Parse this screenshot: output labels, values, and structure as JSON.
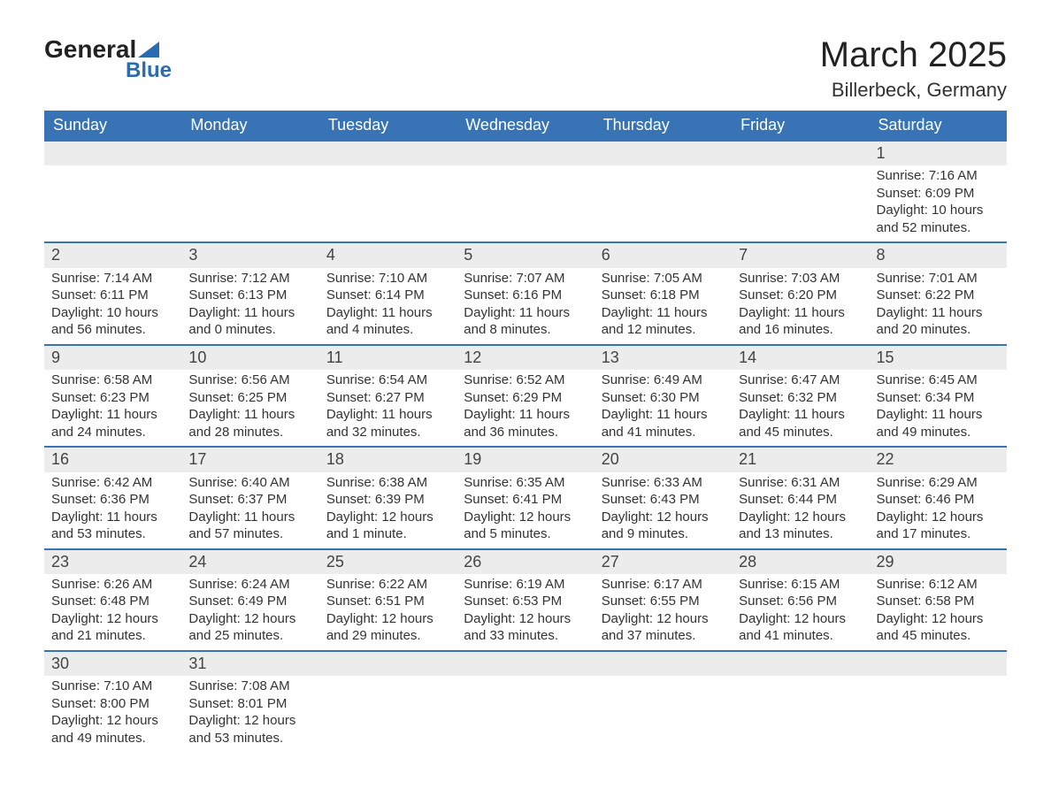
{
  "logo": {
    "text_a": "General",
    "text_b": "Blue",
    "icon_color": "#2b6bb0",
    "text_a_color": "#222222",
    "text_b_color": "#2b6bb0"
  },
  "header": {
    "title": "March 2025",
    "subtitle": "Billerbeck, Germany"
  },
  "colors": {
    "header_bg": "#3873b6",
    "header_text": "#ffffff",
    "daynum_bg": "#ececec",
    "border": "#3873b6",
    "body_text": "#333333"
  },
  "day_headers": [
    "Sunday",
    "Monday",
    "Tuesday",
    "Wednesday",
    "Thursday",
    "Friday",
    "Saturday"
  ],
  "weeks": [
    [
      null,
      null,
      null,
      null,
      null,
      null,
      {
        "n": "1",
        "sunrise": "Sunrise: 7:16 AM",
        "sunset": "Sunset: 6:09 PM",
        "d1": "Daylight: 10 hours",
        "d2": "and 52 minutes."
      }
    ],
    [
      {
        "n": "2",
        "sunrise": "Sunrise: 7:14 AM",
        "sunset": "Sunset: 6:11 PM",
        "d1": "Daylight: 10 hours",
        "d2": "and 56 minutes."
      },
      {
        "n": "3",
        "sunrise": "Sunrise: 7:12 AM",
        "sunset": "Sunset: 6:13 PM",
        "d1": "Daylight: 11 hours",
        "d2": "and 0 minutes."
      },
      {
        "n": "4",
        "sunrise": "Sunrise: 7:10 AM",
        "sunset": "Sunset: 6:14 PM",
        "d1": "Daylight: 11 hours",
        "d2": "and 4 minutes."
      },
      {
        "n": "5",
        "sunrise": "Sunrise: 7:07 AM",
        "sunset": "Sunset: 6:16 PM",
        "d1": "Daylight: 11 hours",
        "d2": "and 8 minutes."
      },
      {
        "n": "6",
        "sunrise": "Sunrise: 7:05 AM",
        "sunset": "Sunset: 6:18 PM",
        "d1": "Daylight: 11 hours",
        "d2": "and 12 minutes."
      },
      {
        "n": "7",
        "sunrise": "Sunrise: 7:03 AM",
        "sunset": "Sunset: 6:20 PM",
        "d1": "Daylight: 11 hours",
        "d2": "and 16 minutes."
      },
      {
        "n": "8",
        "sunrise": "Sunrise: 7:01 AM",
        "sunset": "Sunset: 6:22 PM",
        "d1": "Daylight: 11 hours",
        "d2": "and 20 minutes."
      }
    ],
    [
      {
        "n": "9",
        "sunrise": "Sunrise: 6:58 AM",
        "sunset": "Sunset: 6:23 PM",
        "d1": "Daylight: 11 hours",
        "d2": "and 24 minutes."
      },
      {
        "n": "10",
        "sunrise": "Sunrise: 6:56 AM",
        "sunset": "Sunset: 6:25 PM",
        "d1": "Daylight: 11 hours",
        "d2": "and 28 minutes."
      },
      {
        "n": "11",
        "sunrise": "Sunrise: 6:54 AM",
        "sunset": "Sunset: 6:27 PM",
        "d1": "Daylight: 11 hours",
        "d2": "and 32 minutes."
      },
      {
        "n": "12",
        "sunrise": "Sunrise: 6:52 AM",
        "sunset": "Sunset: 6:29 PM",
        "d1": "Daylight: 11 hours",
        "d2": "and 36 minutes."
      },
      {
        "n": "13",
        "sunrise": "Sunrise: 6:49 AM",
        "sunset": "Sunset: 6:30 PM",
        "d1": "Daylight: 11 hours",
        "d2": "and 41 minutes."
      },
      {
        "n": "14",
        "sunrise": "Sunrise: 6:47 AM",
        "sunset": "Sunset: 6:32 PM",
        "d1": "Daylight: 11 hours",
        "d2": "and 45 minutes."
      },
      {
        "n": "15",
        "sunrise": "Sunrise: 6:45 AM",
        "sunset": "Sunset: 6:34 PM",
        "d1": "Daylight: 11 hours",
        "d2": "and 49 minutes."
      }
    ],
    [
      {
        "n": "16",
        "sunrise": "Sunrise: 6:42 AM",
        "sunset": "Sunset: 6:36 PM",
        "d1": "Daylight: 11 hours",
        "d2": "and 53 minutes."
      },
      {
        "n": "17",
        "sunrise": "Sunrise: 6:40 AM",
        "sunset": "Sunset: 6:37 PM",
        "d1": "Daylight: 11 hours",
        "d2": "and 57 minutes."
      },
      {
        "n": "18",
        "sunrise": "Sunrise: 6:38 AM",
        "sunset": "Sunset: 6:39 PM",
        "d1": "Daylight: 12 hours",
        "d2": "and 1 minute."
      },
      {
        "n": "19",
        "sunrise": "Sunrise: 6:35 AM",
        "sunset": "Sunset: 6:41 PM",
        "d1": "Daylight: 12 hours",
        "d2": "and 5 minutes."
      },
      {
        "n": "20",
        "sunrise": "Sunrise: 6:33 AM",
        "sunset": "Sunset: 6:43 PM",
        "d1": "Daylight: 12 hours",
        "d2": "and 9 minutes."
      },
      {
        "n": "21",
        "sunrise": "Sunrise: 6:31 AM",
        "sunset": "Sunset: 6:44 PM",
        "d1": "Daylight: 12 hours",
        "d2": "and 13 minutes."
      },
      {
        "n": "22",
        "sunrise": "Sunrise: 6:29 AM",
        "sunset": "Sunset: 6:46 PM",
        "d1": "Daylight: 12 hours",
        "d2": "and 17 minutes."
      }
    ],
    [
      {
        "n": "23",
        "sunrise": "Sunrise: 6:26 AM",
        "sunset": "Sunset: 6:48 PM",
        "d1": "Daylight: 12 hours",
        "d2": "and 21 minutes."
      },
      {
        "n": "24",
        "sunrise": "Sunrise: 6:24 AM",
        "sunset": "Sunset: 6:49 PM",
        "d1": "Daylight: 12 hours",
        "d2": "and 25 minutes."
      },
      {
        "n": "25",
        "sunrise": "Sunrise: 6:22 AM",
        "sunset": "Sunset: 6:51 PM",
        "d1": "Daylight: 12 hours",
        "d2": "and 29 minutes."
      },
      {
        "n": "26",
        "sunrise": "Sunrise: 6:19 AM",
        "sunset": "Sunset: 6:53 PM",
        "d1": "Daylight: 12 hours",
        "d2": "and 33 minutes."
      },
      {
        "n": "27",
        "sunrise": "Sunrise: 6:17 AM",
        "sunset": "Sunset: 6:55 PM",
        "d1": "Daylight: 12 hours",
        "d2": "and 37 minutes."
      },
      {
        "n": "28",
        "sunrise": "Sunrise: 6:15 AM",
        "sunset": "Sunset: 6:56 PM",
        "d1": "Daylight: 12 hours",
        "d2": "and 41 minutes."
      },
      {
        "n": "29",
        "sunrise": "Sunrise: 6:12 AM",
        "sunset": "Sunset: 6:58 PM",
        "d1": "Daylight: 12 hours",
        "d2": "and 45 minutes."
      }
    ],
    [
      {
        "n": "30",
        "sunrise": "Sunrise: 7:10 AM",
        "sunset": "Sunset: 8:00 PM",
        "d1": "Daylight: 12 hours",
        "d2": "and 49 minutes."
      },
      {
        "n": "31",
        "sunrise": "Sunrise: 7:08 AM",
        "sunset": "Sunset: 8:01 PM",
        "d1": "Daylight: 12 hours",
        "d2": "and 53 minutes."
      },
      null,
      null,
      null,
      null,
      null
    ]
  ]
}
